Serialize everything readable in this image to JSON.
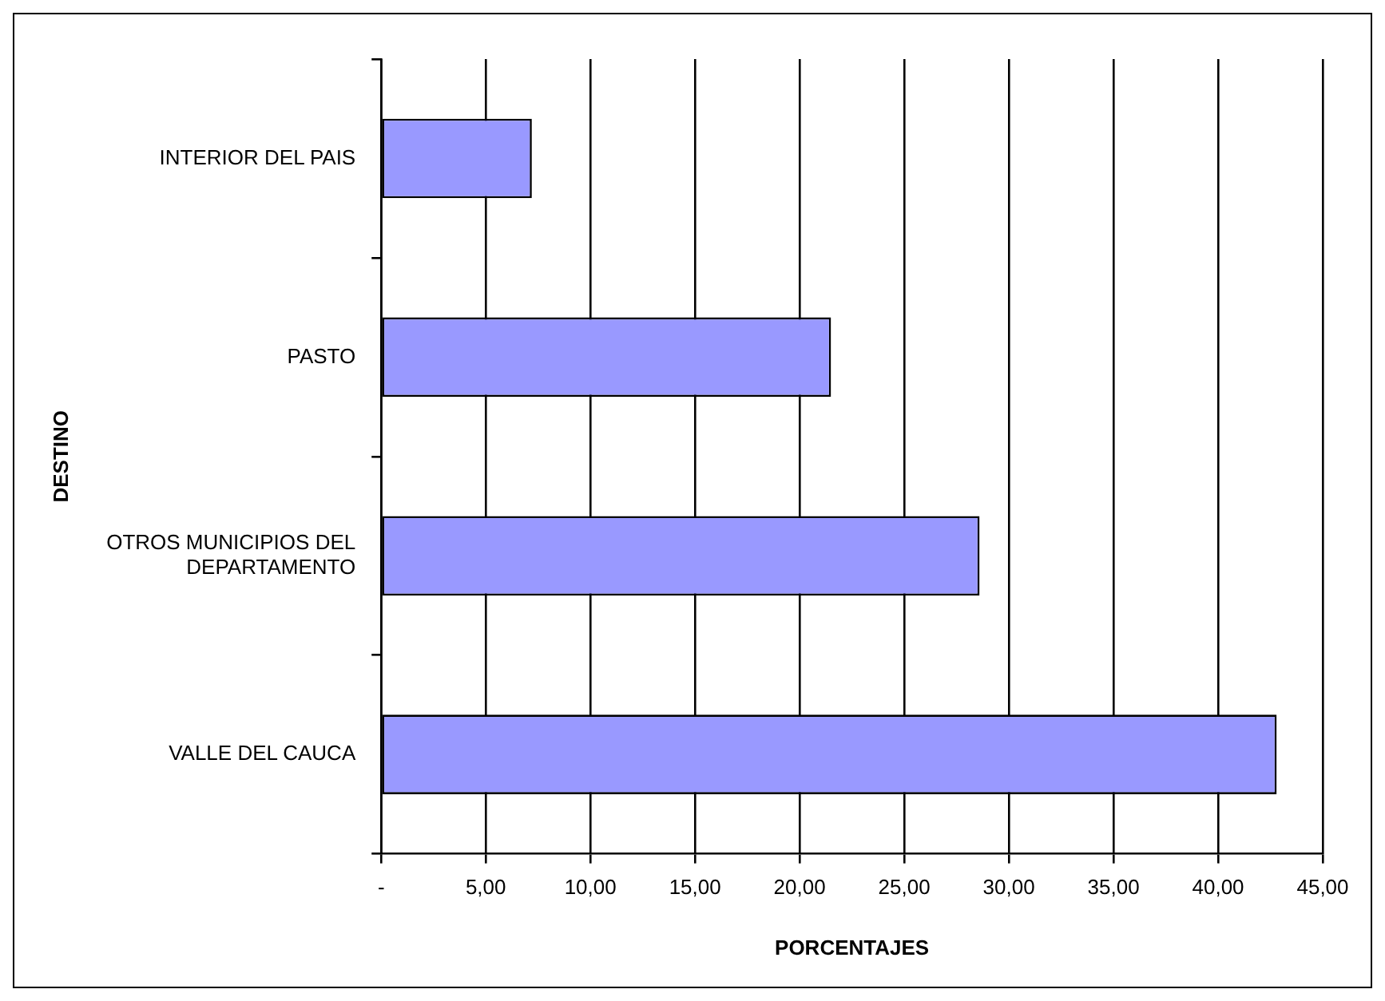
{
  "chart_data": {
    "type": "bar",
    "orientation": "horizontal",
    "xlabel": "PORCENTAJES",
    "ylabel": "DESTINO",
    "categories": [
      "INTERIOR DEL PAIS",
      "PASTO",
      "OTROS MUNICIPIOS DEL DEPARTAMENTO",
      "VALLE DEL CAUCA"
    ],
    "values": [
      7.2,
      21.5,
      28.6,
      42.8
    ],
    "color": "#9999ff",
    "xlim": [
      0,
      45
    ],
    "xticks": [
      {
        "value": 0,
        "label": "-"
      },
      {
        "value": 5,
        "label": "5,00"
      },
      {
        "value": 10,
        "label": "10,00"
      },
      {
        "value": 15,
        "label": "15,00"
      },
      {
        "value": 20,
        "label": "20,00"
      },
      {
        "value": 25,
        "label": "25,00"
      },
      {
        "value": 30,
        "label": "30,00"
      },
      {
        "value": 35,
        "label": "35,00"
      },
      {
        "value": 40,
        "label": "40,00"
      },
      {
        "value": 45,
        "label": "45,00"
      }
    ],
    "grid": "x",
    "legend": false
  }
}
